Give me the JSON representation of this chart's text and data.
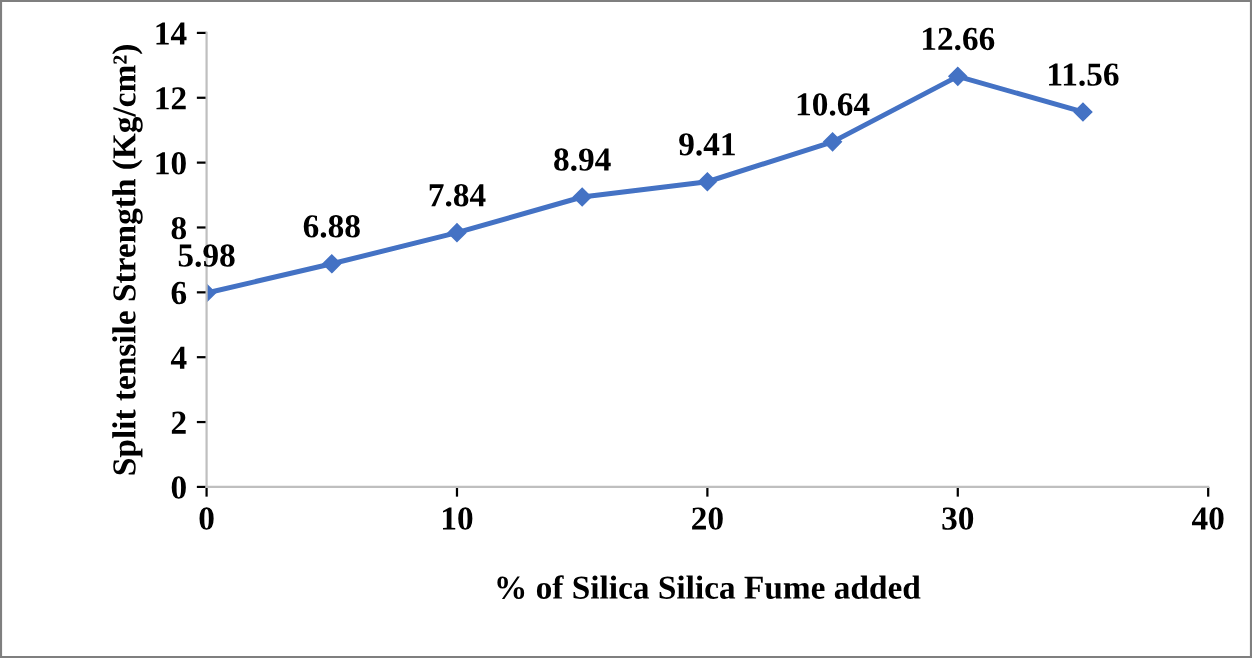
{
  "chart_data": {
    "type": "line",
    "xlabel": "% of Silica Silica Fume added",
    "ylabel": "Split tensile Strength (Kg/cm²)",
    "x": [
      0,
      5,
      10,
      15,
      20,
      25,
      30,
      35
    ],
    "series": [
      {
        "color": "#4472c4",
        "values": [
          5.98,
          6.88,
          7.84,
          8.94,
          9.41,
          10.64,
          12.66,
          11.56
        ]
      }
    ],
    "xlim": [
      0,
      40
    ],
    "xticks": [
      0,
      10,
      20,
      30,
      40
    ],
    "ylim": [
      0,
      14
    ],
    "yticks": [
      0,
      2,
      4,
      6,
      8,
      10,
      12,
      14
    ],
    "marker": "diamond",
    "line_style": "solid",
    "grid": false,
    "data_labels": true
  }
}
